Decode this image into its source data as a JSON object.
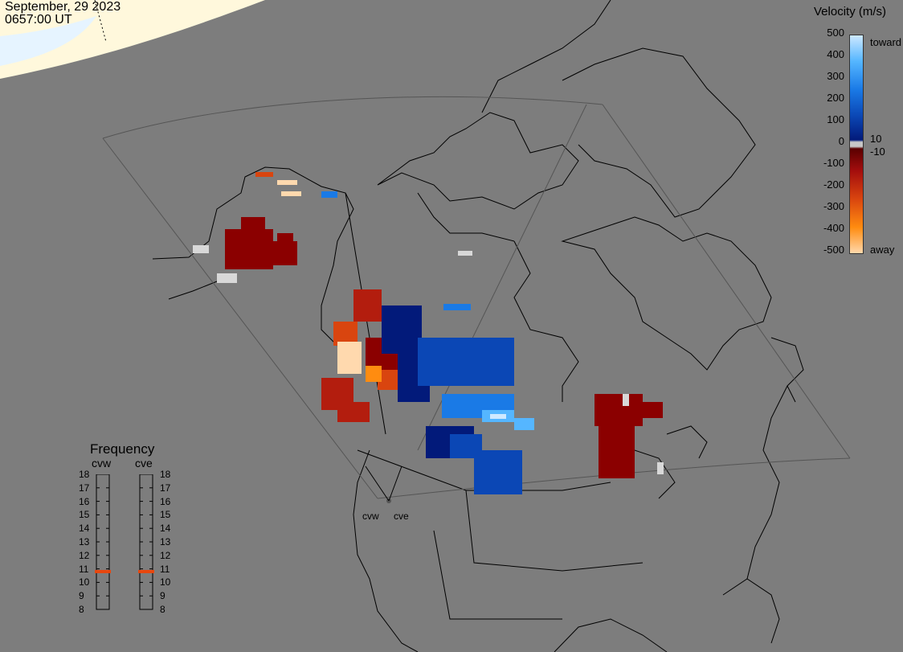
{
  "timestamp": {
    "date": "September, 29 2023",
    "time": "0657:00 UT"
  },
  "colorbar": {
    "title": "Velocity (m/s)",
    "ticks": [
      "500",
      "400",
      "300",
      "200",
      "100",
      "0",
      "-100",
      "-200",
      "-300",
      "-400",
      "-500"
    ],
    "small_ticks": [
      "10",
      "-10"
    ],
    "toward_label": "toward",
    "away_label": "away",
    "colors": [
      "#cfe9ff",
      "#55b6ff",
      "#1a7ae6",
      "#0b47b5",
      "#021a7a",
      "#5a0000",
      "#a30d0d",
      "#d9450f",
      "#ff8c10",
      "#ffd9ae"
    ]
  },
  "frequency_panel": {
    "title": "Frequency",
    "radars": [
      "cvw",
      "cve"
    ],
    "scale": [
      "18",
      "17",
      "16",
      "15",
      "14",
      "13",
      "12",
      "11",
      "10",
      "9",
      "8"
    ],
    "selected_mhz": {
      "cvw": 10.8,
      "cve": 10.8
    },
    "marker_color": "#e8470e"
  },
  "sites": {
    "labels": [
      "cvw",
      "cve"
    ]
  },
  "colors": {
    "land_outline": "#000000",
    "ocean": "#7d7d7d",
    "daylight": "#fff8dc",
    "daylight_sky": "#e6f4ff"
  }
}
